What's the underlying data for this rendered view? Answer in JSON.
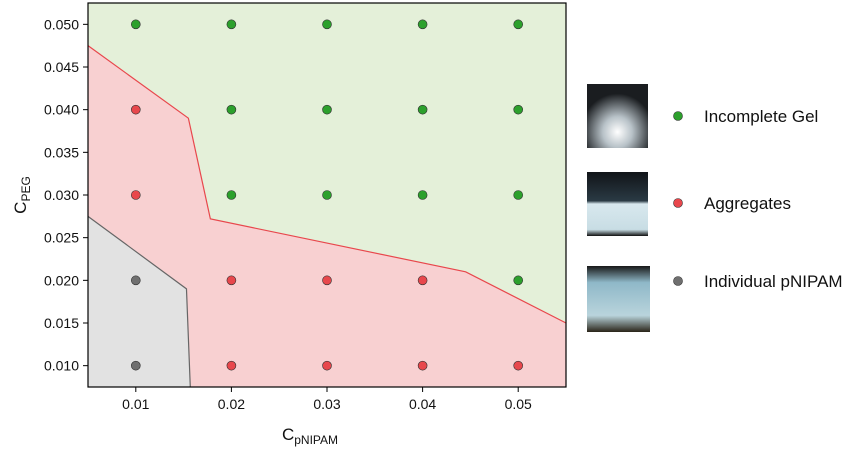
{
  "chart_data": {
    "type": "scatter",
    "xlabel": "C",
    "xlabel_sub": "pNIPAM",
    "ylabel": "C",
    "ylabel_sub": "PEG",
    "xlim": [
      0.005,
      0.055
    ],
    "ylim": [
      0.0075,
      0.0525
    ],
    "xticks": [
      0.01,
      0.02,
      0.03,
      0.04,
      0.05
    ],
    "yticks": [
      {
        "value": 0.01,
        "label": "0.010"
      },
      {
        "value": 0.015,
        "label": "0.015"
      },
      {
        "value": 0.02,
        "label": "0.020"
      },
      {
        "value": 0.025,
        "label": "0.025"
      },
      {
        "value": 0.03,
        "label": "0.030"
      },
      {
        "value": 0.035,
        "label": "0.035"
      },
      {
        "value": 0.04,
        "label": "0.040"
      },
      {
        "value": 0.045,
        "label": "0.045"
      },
      {
        "value": 0.05,
        "label": "0.050"
      }
    ],
    "background": "#e4f0d9",
    "boundaries": [
      {
        "line_color": "#e8474c",
        "fill": "#f8d0d1",
        "x": [
          0.005,
          0.0155,
          0.0178,
          0.0445,
          0.055
        ],
        "y": [
          0.0475,
          0.039,
          0.0272,
          0.021,
          0.015
        ]
      },
      {
        "line_color": "#666666",
        "fill": "#e2e2e2",
        "x": [
          0.005,
          0.0153,
          0.0157
        ],
        "y": [
          0.0275,
          0.019,
          0.0075
        ]
      }
    ],
    "series": [
      {
        "name": "Incomplete Gel",
        "color": "#2ca02c",
        "x": [
          0.01,
          0.02,
          0.02,
          0.02,
          0.03,
          0.03,
          0.03,
          0.04,
          0.04,
          0.04,
          0.05,
          0.05,
          0.05,
          0.05
        ],
        "values": [
          0.05,
          0.05,
          0.04,
          0.03,
          0.05,
          0.04,
          0.03,
          0.05,
          0.04,
          0.03,
          0.05,
          0.04,
          0.03,
          0.02
        ]
      },
      {
        "name": "Aggregates",
        "color": "#e8474c",
        "x": [
          0.01,
          0.01,
          0.02,
          0.02,
          0.03,
          0.03,
          0.04,
          0.04,
          0.05
        ],
        "values": [
          0.04,
          0.03,
          0.02,
          0.01,
          0.02,
          0.01,
          0.02,
          0.01,
          0.01
        ]
      },
      {
        "name": "Individual pNIPAM",
        "color": "#6f6f6f",
        "x": [
          0.01,
          0.01
        ],
        "values": [
          0.02,
          0.01
        ]
      }
    ]
  }
}
